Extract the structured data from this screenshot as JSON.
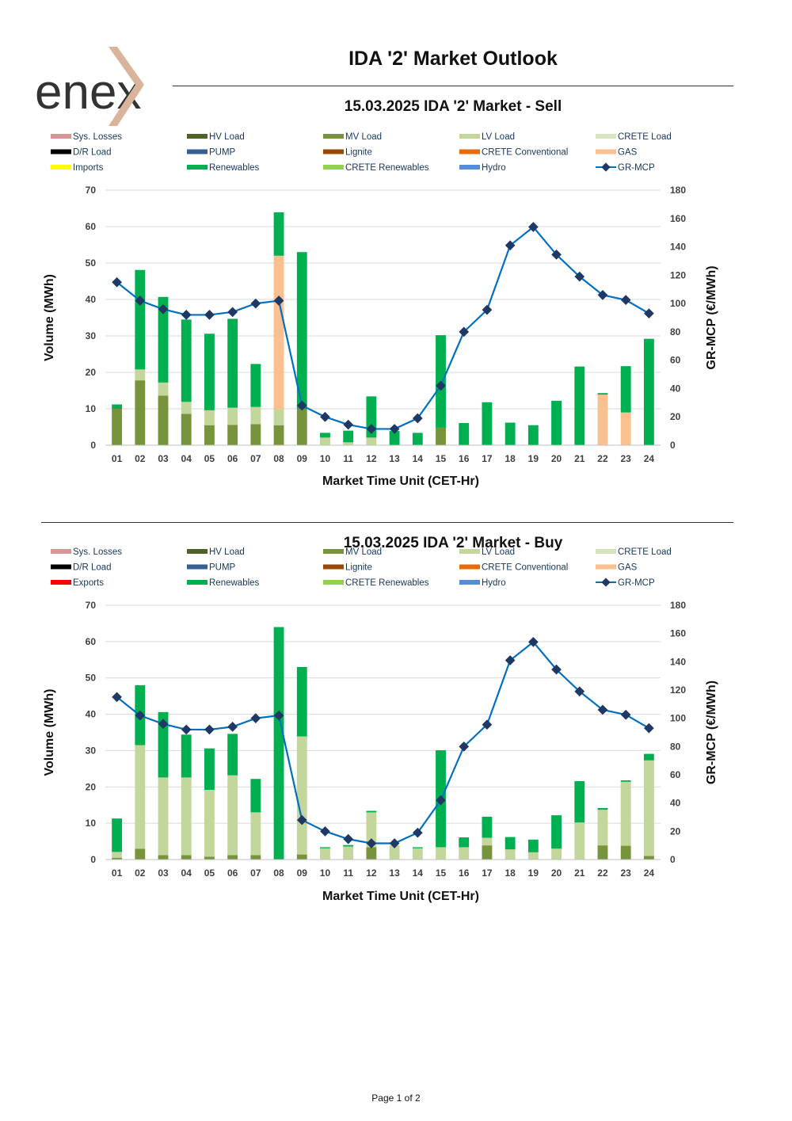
{
  "header": {
    "title": "IDA '2' Market Outlook",
    "logo_text": "enex"
  },
  "footer": {
    "page_label": "Page 1 of 2"
  },
  "colors": {
    "sys_losses": "#d99694",
    "hv_load": "#4f6228",
    "mv_load": "#77933c",
    "lv_load": "#c3d69b",
    "crete_load": "#d7e4bd",
    "dr_load": "#000000",
    "pump": "#375f92",
    "lignite": "#984807",
    "crete_conventional": "#e46c0a",
    "gas": "#fac090",
    "imports": "#ffff00",
    "exports": "#ff0000",
    "renewables": "#00b050",
    "crete_renewables": "#92d050",
    "hydro": "#558ed5",
    "gr_mcp": "#0070c0",
    "gr_mcp_marker": "#1f3864",
    "logo_text": "#333333",
    "logo_mark": "#d9b49a",
    "legend_text": "#17365d"
  },
  "chart_data": [
    {
      "type": "bar",
      "title": "15.03.2025  IDA '2' Market - Sell",
      "xlabel": "Market Time Unit (CET-Hr)",
      "ylabel": "Volume (MWh)",
      "y2label": "GR-MCP (€/MWh)",
      "ylim": [
        0,
        70
      ],
      "y_ticks": [
        0,
        10,
        20,
        30,
        40,
        50,
        60,
        70
      ],
      "y2lim": [
        0,
        180
      ],
      "y2_ticks": [
        0,
        20,
        40,
        60,
        80,
        100,
        120,
        140,
        160,
        180
      ],
      "grid": true,
      "categories": [
        "01",
        "02",
        "03",
        "04",
        "05",
        "06",
        "07",
        "08",
        "09",
        "10",
        "11",
        "12",
        "13",
        "14",
        "15",
        "16",
        "17",
        "18",
        "19",
        "20",
        "21",
        "22",
        "23",
        "24"
      ],
      "legend": [
        {
          "label": "Sys. Losses",
          "key": "sys_losses",
          "kind": "bar"
        },
        {
          "label": "HV Load",
          "key": "hv_load",
          "kind": "bar"
        },
        {
          "label": "MV Load",
          "key": "mv_load",
          "kind": "bar"
        },
        {
          "label": "LV Load",
          "key": "lv_load",
          "kind": "bar"
        },
        {
          "label": "CRETE Load",
          "key": "crete_load",
          "kind": "bar"
        },
        {
          "label": "D/R Load",
          "key": "dr_load",
          "kind": "bar"
        },
        {
          "label": "PUMP",
          "key": "pump",
          "kind": "bar"
        },
        {
          "label": "Lignite",
          "key": "lignite",
          "kind": "bar"
        },
        {
          "label": "CRETE Conventional",
          "key": "crete_conventional",
          "kind": "bar"
        },
        {
          "label": "GAS",
          "key": "gas",
          "kind": "bar"
        },
        {
          "label": "Imports",
          "key": "imports",
          "kind": "bar"
        },
        {
          "label": "Renewables",
          "key": "renewables",
          "kind": "bar"
        },
        {
          "label": "CRETE Renewables",
          "key": "crete_renewables",
          "kind": "bar"
        },
        {
          "label": "Hydro",
          "key": "hydro",
          "kind": "bar"
        },
        {
          "label": "GR-MCP",
          "key": "gr_mcp",
          "kind": "line"
        }
      ],
      "series": [
        {
          "name": "MV Load",
          "key": "mv_load",
          "values": [
            10,
            17.8,
            13.6,
            8.6,
            5.5,
            5.6,
            5.8,
            5.5,
            10,
            0,
            0,
            0,
            0,
            0,
            4.8,
            0,
            0,
            0,
            0,
            0,
            0,
            0,
            0,
            0
          ]
        },
        {
          "name": "LV Load",
          "key": "lv_load",
          "values": [
            0,
            3,
            3.6,
            3.3,
            4.1,
            4.7,
            4.7,
            4.4,
            0,
            2.1,
            0.8,
            2.1,
            0,
            0,
            0,
            0,
            0,
            0,
            0,
            0,
            0,
            0,
            0,
            0
          ]
        },
        {
          "name": "GAS",
          "key": "gas",
          "values": [
            0,
            0,
            0,
            0,
            0,
            0,
            0,
            42.1,
            0,
            0,
            0,
            0,
            0,
            0,
            0,
            0,
            0,
            0,
            0,
            0,
            0,
            13.9,
            9,
            0
          ]
        },
        {
          "name": "Renewables",
          "key": "renewables",
          "values": [
            1.2,
            27.3,
            23.5,
            22.6,
            21,
            24.4,
            11.8,
            11.9,
            43,
            1.3,
            3.2,
            11.3,
            3.9,
            3.4,
            25.4,
            6.1,
            11.8,
            6.2,
            5.5,
            12.2,
            21.6,
            0.4,
            12.7,
            29.2
          ]
        }
      ],
      "line": {
        "name": "GR-MCP",
        "axis": "y2",
        "values": [
          115,
          102,
          96,
          92,
          92,
          94,
          100,
          102,
          28,
          20,
          14.5,
          11.5,
          11.5,
          19,
          42,
          80,
          95.5,
          141,
          154,
          134.5,
          119,
          106,
          102.5,
          93
        ]
      }
    },
    {
      "type": "bar",
      "title": "15.03.2025  IDA '2' Market - Buy",
      "xlabel": "Market Time Unit (CET-Hr)",
      "ylabel": "Volume (MWh)",
      "y2label": "GR-MCP (€/MWh)",
      "ylim": [
        0,
        70
      ],
      "y_ticks": [
        0,
        10,
        20,
        30,
        40,
        50,
        60,
        70
      ],
      "y2lim": [
        0,
        180
      ],
      "y2_ticks": [
        0,
        20,
        40,
        60,
        80,
        100,
        120,
        140,
        160,
        180
      ],
      "grid": true,
      "categories": [
        "01",
        "02",
        "03",
        "04",
        "05",
        "06",
        "07",
        "08",
        "09",
        "10",
        "11",
        "12",
        "13",
        "14",
        "15",
        "16",
        "17",
        "18",
        "19",
        "20",
        "21",
        "22",
        "23",
        "24"
      ],
      "legend": [
        {
          "label": "Sys. Losses",
          "key": "sys_losses",
          "kind": "bar"
        },
        {
          "label": "HV Load",
          "key": "hv_load",
          "kind": "bar"
        },
        {
          "label": "MV Load",
          "key": "mv_load",
          "kind": "bar"
        },
        {
          "label": "LV Load",
          "key": "lv_load",
          "kind": "bar"
        },
        {
          "label": "CRETE Load",
          "key": "crete_load",
          "kind": "bar"
        },
        {
          "label": "D/R Load",
          "key": "dr_load",
          "kind": "bar"
        },
        {
          "label": "PUMP",
          "key": "pump",
          "kind": "bar"
        },
        {
          "label": "Lignite",
          "key": "lignite",
          "kind": "bar"
        },
        {
          "label": "CRETE Conventional",
          "key": "crete_conventional",
          "kind": "bar"
        },
        {
          "label": "GAS",
          "key": "gas",
          "kind": "bar"
        },
        {
          "label": "Exports",
          "key": "exports",
          "kind": "bar"
        },
        {
          "label": "Renewables",
          "key": "renewables",
          "kind": "bar"
        },
        {
          "label": "CRETE Renewables",
          "key": "crete_renewables",
          "kind": "bar"
        },
        {
          "label": "Hydro",
          "key": "hydro",
          "kind": "bar"
        },
        {
          "label": "GR-MCP",
          "key": "gr_mcp",
          "kind": "line"
        }
      ],
      "series": [
        {
          "name": "MV Load",
          "key": "mv_load",
          "values": [
            0.5,
            3,
            1.2,
            1.2,
            0.8,
            1.2,
            1.2,
            0,
            1.4,
            0,
            0,
            3.4,
            0,
            0,
            0,
            0,
            3.9,
            0,
            0,
            0,
            0,
            3.9,
            3.8,
            1
          ]
        },
        {
          "name": "LV Load",
          "key": "lv_load",
          "values": [
            1.6,
            28.5,
            21.4,
            21.4,
            18.4,
            22,
            11.8,
            0,
            32.5,
            3.1,
            3.6,
            9.6,
            3.9,
            3.1,
            3.4,
            3.4,
            2.1,
            2.8,
            2,
            3,
            10.2,
            9.8,
            17.6,
            26.3
          ]
        },
        {
          "name": "Renewables",
          "key": "renewables",
          "values": [
            9.2,
            16.5,
            18,
            11.8,
            11.4,
            11.4,
            9.2,
            64,
            19.1,
            0.3,
            0.4,
            0.4,
            0,
            0.3,
            26.7,
            2.7,
            5.8,
            3.4,
            3.5,
            9.2,
            11.4,
            0.5,
            0.4,
            1.8
          ]
        }
      ],
      "line": {
        "name": "GR-MCP",
        "axis": "y2",
        "values": [
          115,
          102,
          96,
          92,
          92,
          94,
          100,
          102,
          28,
          20,
          14.5,
          11.5,
          11.5,
          19,
          42,
          80,
          95.5,
          141,
          154,
          134.5,
          119,
          106,
          102.5,
          93
        ]
      }
    }
  ]
}
